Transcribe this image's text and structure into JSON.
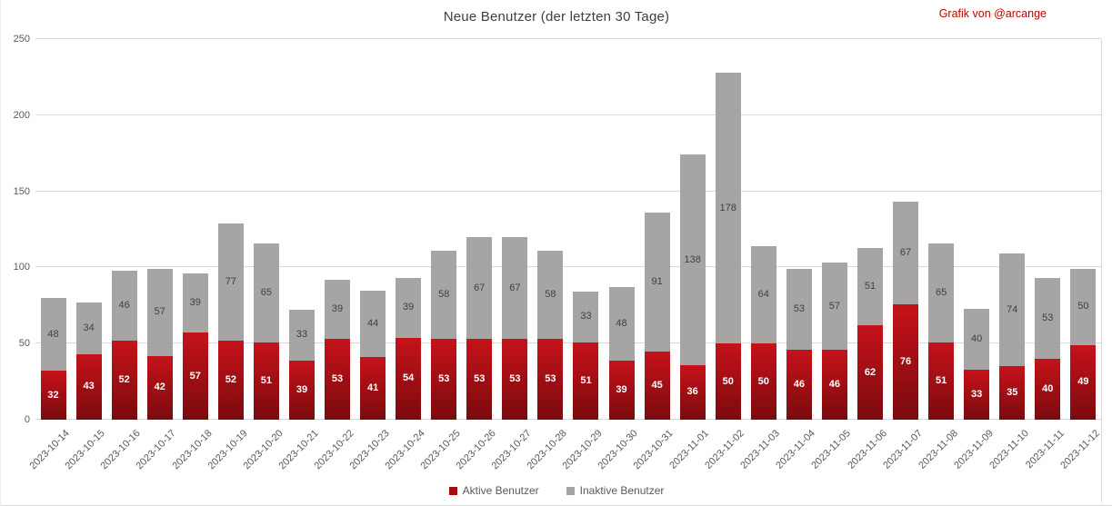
{
  "title": "Neue Benutzer (der letzten 30 Tage)",
  "credit": "Grafik von @arcange",
  "colors": {
    "active_top": "#c6121a",
    "active_bottom": "#7a0b0e",
    "active_legend": "#a50d10",
    "inactive": "#a7a5a4",
    "gridline": "#d9d9d9",
    "axis_text": "#595959",
    "title_text": "#404040",
    "credit_text": "#c00000"
  },
  "chart_data": {
    "type": "bar",
    "stacked": true,
    "title": "Neue Benutzer (der letzten 30 Tage)",
    "xlabel": "",
    "ylabel": "",
    "ylim": [
      0,
      250
    ],
    "yticks": [
      0,
      50,
      100,
      150,
      200,
      250
    ],
    "grid": true,
    "legend_position": "bottom",
    "categories": [
      "2023-10-14",
      "2023-10-15",
      "2023-10-16",
      "2023-10-17",
      "2023-10-18",
      "2023-10-19",
      "2023-10-20",
      "2023-10-21",
      "2023-10-22",
      "2023-10-23",
      "2023-10-24",
      "2023-10-25",
      "2023-10-26",
      "2023-10-27",
      "2023-10-28",
      "2023-10-29",
      "2023-10-30",
      "2023-10-31",
      "2023-11-01",
      "2023-11-02",
      "2023-11-03",
      "2023-11-04",
      "2023-11-05",
      "2023-11-06",
      "2023-11-07",
      "2023-11-08",
      "2023-11-09",
      "2023-11-10",
      "2023-11-11",
      "2023-11-12"
    ],
    "series": [
      {
        "name": "Aktive Benutzer",
        "color": "#a50d10",
        "values": [
          32,
          43,
          52,
          42,
          57,
          52,
          51,
          39,
          53,
          41,
          54,
          53,
          53,
          53,
          53,
          51,
          39,
          45,
          36,
          50,
          50,
          46,
          46,
          62,
          76,
          51,
          33,
          35,
          40,
          49
        ]
      },
      {
        "name": "Inaktive Benutzer",
        "color": "#a7a5a4",
        "values": [
          48,
          34,
          46,
          57,
          39,
          77,
          65,
          33,
          39,
          44,
          39,
          58,
          67,
          67,
          58,
          33,
          48,
          91,
          138,
          178,
          64,
          53,
          57,
          51,
          67,
          65,
          40,
          74,
          53,
          50
        ]
      }
    ]
  }
}
